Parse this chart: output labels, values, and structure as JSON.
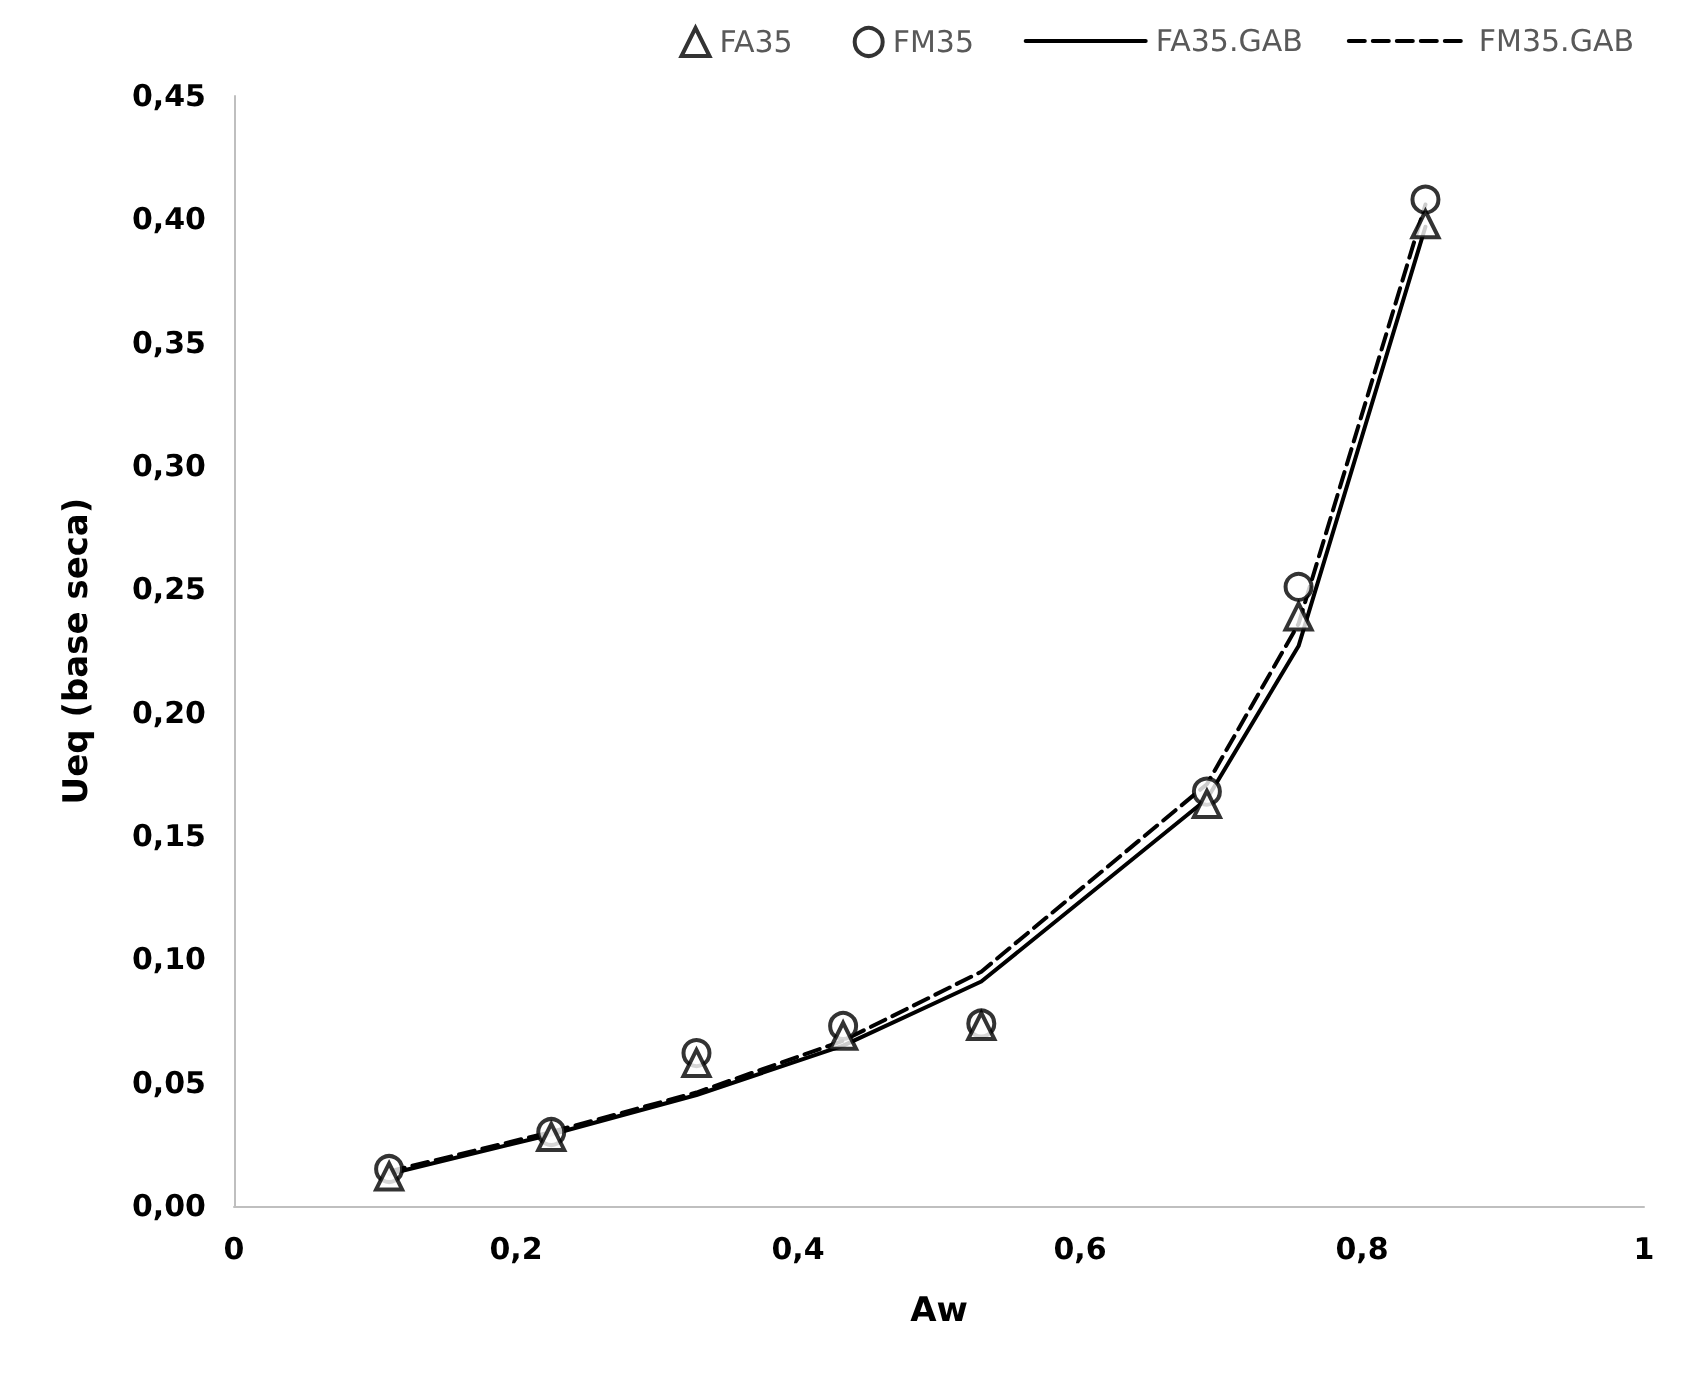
{
  "chart_data": {
    "type": "scatter",
    "xlabel": "Aw",
    "ylabel": "Ueq (base seca)",
    "x": [
      0.11,
      0.225,
      0.328,
      0.432,
      0.53,
      0.69,
      0.755,
      0.845
    ],
    "series": [
      {
        "name": "FA35",
        "marker": "triangle",
        "color": "#000000",
        "values": [
          0.012,
          0.028,
          0.058,
          0.069,
          0.073,
          0.163,
          0.239,
          0.398
        ]
      },
      {
        "name": "FM35",
        "marker": "circle",
        "color": "#000000",
        "values": [
          0.015,
          0.03,
          0.062,
          0.073,
          0.074,
          0.168,
          0.251,
          0.408
        ]
      },
      {
        "name": "FA35.GAB",
        "type": "line",
        "marker": "none",
        "line_style": "solid",
        "color": "#000000",
        "values": [
          0.013,
          0.029,
          0.045,
          0.065,
          0.091,
          0.165,
          0.227,
          0.397
        ]
      },
      {
        "name": "FM35.GAB",
        "type": "line",
        "marker": "none",
        "line_style": "dashed",
        "color": "#000000",
        "values": [
          0.014,
          0.03,
          0.046,
          0.067,
          0.095,
          0.171,
          0.236,
          0.406
        ]
      }
    ],
    "xlim": [
      0,
      1
    ],
    "xticks": [
      0,
      {
        "value": 0.2,
        "label": "0,2"
      },
      {
        "value": 0.4,
        "label": "0,4"
      },
      {
        "value": 0.6,
        "label": "0,6"
      },
      {
        "value": 0.8,
        "label": "0,8"
      },
      1
    ],
    "ylim": [
      0,
      0.45
    ],
    "yticks": [
      {
        "value": 0,
        "label": "0,00"
      },
      {
        "value": 0.05,
        "label": "0,05"
      },
      {
        "value": 0.1,
        "label": "0,10"
      },
      {
        "value": 0.15,
        "label": "0,15"
      },
      {
        "value": 0.2,
        "label": "0,20"
      },
      {
        "value": 0.25,
        "label": "0,25"
      },
      {
        "value": 0.3,
        "label": "0,30"
      },
      {
        "value": 0.35,
        "label": "0,35"
      },
      {
        "value": 0.4,
        "label": "0,40"
      },
      {
        "value": 0.45,
        "label": "0,45"
      }
    ],
    "grid": false,
    "legend": "top right"
  }
}
